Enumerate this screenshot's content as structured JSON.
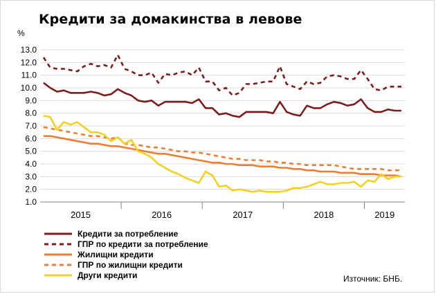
{
  "title": "Кредити за домакинства в левове",
  "unit_label": "%",
  "source": "Източник: БНБ.",
  "chart_data": {
    "type": "line",
    "title": "Кредити за домакинства в левове",
    "ylabel": "%",
    "xlabel": "",
    "ylim": [
      1.0,
      13.0
    ],
    "y_ticks": [
      "1.0",
      "2.0",
      "3.0",
      "4.0",
      "5.0",
      "6.0",
      "7.0",
      "8.0",
      "9.0",
      "10.0",
      "11.0",
      "12.0",
      "13.0"
    ],
    "x_year_labels": [
      "2015",
      "2016",
      "2017",
      "2018",
      "2019"
    ],
    "x_month_count": 54,
    "grid": true,
    "legend_position": "bottom-left",
    "series": [
      {
        "name": "Кредити за потребление",
        "color": "#7b1c1c",
        "style": "solid",
        "values": [
          10.4,
          10.0,
          9.7,
          9.8,
          9.6,
          9.6,
          9.6,
          9.7,
          9.6,
          9.4,
          9.5,
          9.9,
          9.6,
          9.4,
          9.0,
          8.9,
          9.0,
          8.6,
          8.9,
          8.9,
          8.9,
          8.9,
          8.8,
          9.1,
          8.4,
          8.4,
          7.9,
          8.0,
          7.8,
          7.7,
          8.1,
          8.1,
          8.1,
          8.1,
          8.0,
          8.9,
          8.1,
          7.9,
          7.8,
          8.6,
          8.4,
          8.4,
          8.7,
          8.9,
          8.8,
          8.6,
          8.7,
          9.1,
          8.4,
          8.1,
          8.1,
          8.3,
          8.2,
          8.2
        ]
      },
      {
        "name": "ГПР по кредити за потребление",
        "color": "#7b1c1c",
        "style": "dashed",
        "values": [
          12.4,
          11.6,
          11.5,
          11.5,
          11.4,
          11.3,
          11.7,
          11.9,
          11.7,
          11.8,
          11.6,
          12.6,
          11.5,
          11.3,
          11.0,
          11.0,
          11.2,
          10.4,
          11.1,
          11.0,
          11.2,
          11.3,
          11.0,
          11.6,
          10.5,
          10.5,
          9.8,
          10.0,
          9.4,
          9.6,
          10.3,
          10.3,
          10.4,
          10.5,
          10.5,
          11.7,
          10.3,
          10.1,
          9.9,
          10.5,
          10.3,
          10.4,
          10.9,
          11.0,
          10.9,
          10.7,
          10.7,
          11.4,
          10.7,
          9.9,
          9.8,
          10.1,
          10.1,
          10.1
        ]
      },
      {
        "name": "Жилищни кредити",
        "color": "#ed7d31",
        "style": "solid",
        "values": [
          6.2,
          6.2,
          6.1,
          6.0,
          5.9,
          5.8,
          5.7,
          5.6,
          5.6,
          5.5,
          5.4,
          5.4,
          5.3,
          5.2,
          5.1,
          5.0,
          4.9,
          4.8,
          4.8,
          4.7,
          4.6,
          4.5,
          4.4,
          4.3,
          4.2,
          4.1,
          4.1,
          4.0,
          4.0,
          3.9,
          3.9,
          3.9,
          3.8,
          3.8,
          3.8,
          3.7,
          3.7,
          3.6,
          3.6,
          3.5,
          3.5,
          3.4,
          3.4,
          3.4,
          3.3,
          3.3,
          3.3,
          3.2,
          3.2,
          3.2,
          3.1,
          3.1,
          3.1,
          3.0
        ]
      },
      {
        "name": "ГПР по жилищни кредити",
        "color": "#ed7d31",
        "style": "dashed",
        "values": [
          6.9,
          6.8,
          6.7,
          6.6,
          6.5,
          6.4,
          6.3,
          6.2,
          6.2,
          6.1,
          6.0,
          6.1,
          5.6,
          5.5,
          5.5,
          5.4,
          5.3,
          5.3,
          5.2,
          5.1,
          5.0,
          5.0,
          4.9,
          4.9,
          4.8,
          4.7,
          4.6,
          4.5,
          4.4,
          4.4,
          4.3,
          4.3,
          4.3,
          4.2,
          4.2,
          4.1,
          4.1,
          4.0,
          4.0,
          3.9,
          3.9,
          3.9,
          3.9,
          3.9,
          3.8,
          3.7,
          3.6,
          3.6,
          3.6,
          3.6,
          3.6,
          3.5,
          3.5,
          3.5
        ]
      },
      {
        "name": "Други кредити",
        "color": "#f4d020",
        "style": "solid",
        "values": [
          7.8,
          7.7,
          6.7,
          7.3,
          7.1,
          7.3,
          6.9,
          6.5,
          6.5,
          6.3,
          5.8,
          6.1,
          5.6,
          5.9,
          5.0,
          4.8,
          4.5,
          4.0,
          3.7,
          3.4,
          3.2,
          2.9,
          2.7,
          2.5,
          3.4,
          3.1,
          2.2,
          2.3,
          1.9,
          2.0,
          1.9,
          1.8,
          1.9,
          1.8,
          1.8,
          1.8,
          1.9,
          2.1,
          2.1,
          2.2,
          2.4,
          2.6,
          2.4,
          2.4,
          2.5,
          2.5,
          2.6,
          2.2,
          2.7,
          2.6,
          3.2,
          2.8,
          3.0,
          3.0
        ]
      }
    ]
  }
}
